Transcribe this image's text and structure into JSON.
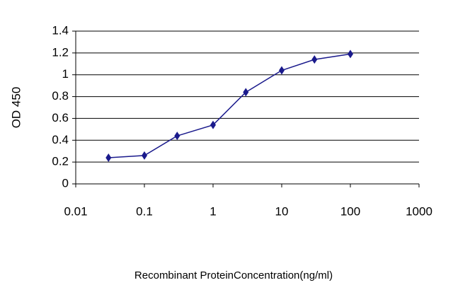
{
  "chart_data": {
    "type": "line",
    "x_label": "Recombinant ProteinConcentration(ng/ml)",
    "y_label": "OD 450",
    "x": [
      0.03,
      0.1,
      0.3,
      1,
      3,
      10,
      30,
      100
    ],
    "series": [
      {
        "color": "#1a1a8c",
        "values": [
          0.24,
          0.26,
          0.44,
          0.54,
          0.84,
          1.04,
          1.14,
          1.19
        ]
      }
    ],
    "xlim": [
      0.01,
      1000
    ],
    "xticks": [
      0.01,
      0.1,
      1,
      10,
      100,
      1000
    ],
    "x_log": true,
    "ylim": [
      0,
      1.4
    ],
    "yticks": [
      0,
      0.2,
      0.4,
      0.6,
      0.8,
      1,
      1.2,
      1.4
    ],
    "grid": true
  }
}
